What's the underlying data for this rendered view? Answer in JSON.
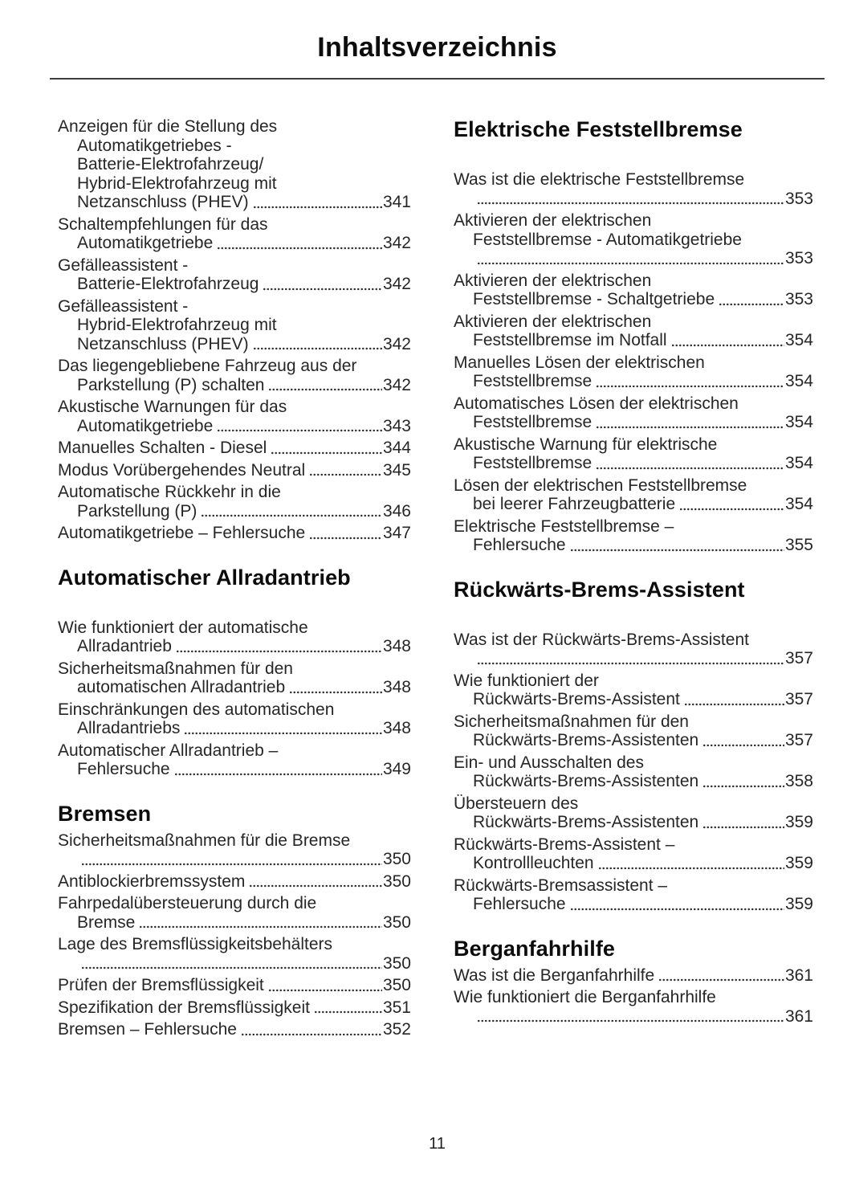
{
  "page": {
    "title": "Inhaltsverzeichnis",
    "page_number": "11"
  },
  "columns": [
    {
      "blocks": [
        {
          "heading": null,
          "entries": [
            {
              "lines": [
                "Anzeigen für die Stellung des",
                "Automatikgetriebes -",
                "Batterie-Elektrofahrzeug/",
                "Hybrid-Elektrofahrzeug mit",
                "Netzanschluss (PHEV)"
              ],
              "page": "341"
            },
            {
              "lines": [
                "Schaltempfehlungen für das",
                "Automatikgetriebe"
              ],
              "page": "342"
            },
            {
              "lines": [
                "Gefälleassistent -",
                "Batterie-Elektrofahrzeug"
              ],
              "page": "342"
            },
            {
              "lines": [
                "Gefälleassistent -",
                "Hybrid-Elektrofahrzeug mit",
                "Netzanschluss (PHEV)"
              ],
              "page": "342"
            },
            {
              "lines": [
                "Das liegengebliebene Fahrzeug aus der",
                "Parkstellung (P) schalten"
              ],
              "page": "342"
            },
            {
              "lines": [
                "Akustische Warnungen für das",
                "Automatikgetriebe"
              ],
              "page": "343"
            },
            {
              "lines": [
                "Manuelles Schalten - Diesel"
              ],
              "page": "344"
            },
            {
              "lines": [
                "Modus Vorübergehendes Neutral"
              ],
              "page": "345"
            },
            {
              "lines": [
                "Automatische Rückkehr in die",
                "Parkstellung (P)"
              ],
              "page": "346"
            },
            {
              "lines": [
                "Automatikgetriebe – Fehlersuche"
              ],
              "page": "347"
            }
          ]
        },
        {
          "heading": "Automatischer Allradantrieb",
          "heading_gap": "large",
          "entries": [
            {
              "lines": [
                "Wie funktioniert der automatische",
                "Allradantrieb"
              ],
              "page": "348"
            },
            {
              "lines": [
                "Sicherheitsmaßnahmen für den",
                "automatischen Allradantrieb"
              ],
              "page": "348"
            },
            {
              "lines": [
                "Einschränkungen des automatischen",
                "Allradantriebs"
              ],
              "page": "348"
            },
            {
              "lines": [
                "Automatischer Allradantrieb –",
                "Fehlersuche"
              ],
              "page": "349"
            }
          ]
        },
        {
          "heading": "Bremsen",
          "heading_gap": "small",
          "entries": [
            {
              "lines": [
                "Sicherheitsmaßnahmen für die Bremse",
                ""
              ],
              "page": "350"
            },
            {
              "lines": [
                "Antiblockierbremssystem"
              ],
              "page": "350"
            },
            {
              "lines": [
                "Fahrpedalübersteuerung durch die",
                "Bremse"
              ],
              "page": "350"
            },
            {
              "lines": [
                "Lage des Bremsflüssigkeitsbehälters",
                ""
              ],
              "page": "350"
            },
            {
              "lines": [
                "Prüfen der Bremsflüssigkeit"
              ],
              "page": "350"
            },
            {
              "lines": [
                "Spezifikation der Bremsflüssigkeit"
              ],
              "page": "351"
            },
            {
              "lines": [
                "Bremsen – Fehlersuche"
              ],
              "page": "352"
            }
          ]
        }
      ]
    },
    {
      "blocks": [
        {
          "heading": "Elektrische Feststellbremse",
          "heading_gap": "large",
          "entries": [
            {
              "lines": [
                "Was ist die elektrische Feststellbremse",
                ""
              ],
              "page": "353"
            },
            {
              "lines": [
                "Aktivieren der elektrischen",
                "Feststellbremse - Automatikgetriebe",
                ""
              ],
              "page": "353"
            },
            {
              "lines": [
                "Aktivieren der elektrischen",
                "Feststellbremse - Schaltgetriebe"
              ],
              "page": "353"
            },
            {
              "lines": [
                "Aktivieren der elektrischen",
                "Feststellbremse im Notfall"
              ],
              "page": "354"
            },
            {
              "lines": [
                "Manuelles Lösen der elektrischen",
                "Feststellbremse"
              ],
              "page": "354"
            },
            {
              "lines": [
                "Automatisches Lösen der elektrischen",
                "Feststellbremse"
              ],
              "page": "354"
            },
            {
              "lines": [
                "Akustische Warnung für elektrische",
                "Feststellbremse"
              ],
              "page": "354"
            },
            {
              "lines": [
                "Lösen der elektrischen Feststellbremse",
                "bei leerer Fahrzeugbatterie"
              ],
              "page": "354"
            },
            {
              "lines": [
                "Elektrische Feststellbremse –",
                "Fehlersuche"
              ],
              "page": "355"
            }
          ]
        },
        {
          "heading": "Rückwärts-Brems-Assistent",
          "heading_gap": "large",
          "entries": [
            {
              "lines": [
                "Was ist der Rückwärts-Brems-Assistent",
                ""
              ],
              "page": "357"
            },
            {
              "lines": [
                "Wie funktioniert der",
                "Rückwärts-Brems-Assistent"
              ],
              "page": "357"
            },
            {
              "lines": [
                "Sicherheitsmaßnahmen für den",
                "Rückwärts-Brems-Assistenten"
              ],
              "page": "357"
            },
            {
              "lines": [
                "Ein- und Ausschalten des",
                "Rückwärts-Brems-Assistenten"
              ],
              "page": "358"
            },
            {
              "lines": [
                "Übersteuern des",
                "Rückwärts-Brems-Assistenten"
              ],
              "page": "359"
            },
            {
              "lines": [
                "Rückwärts-Brems-Assistent –",
                "Kontrollleuchten"
              ],
              "page": "359"
            },
            {
              "lines": [
                "Rückwärts-Bremsassistent –",
                "Fehlersuche"
              ],
              "page": "359"
            }
          ]
        },
        {
          "heading": "Berganfahrhilfe",
          "heading_gap": "small",
          "entries": [
            {
              "lines": [
                "Was ist die Berganfahrhilfe"
              ],
              "page": "361"
            },
            {
              "lines": [
                "Wie funktioniert die Berganfahrhilfe",
                ""
              ],
              "page": "361"
            }
          ]
        }
      ]
    }
  ]
}
